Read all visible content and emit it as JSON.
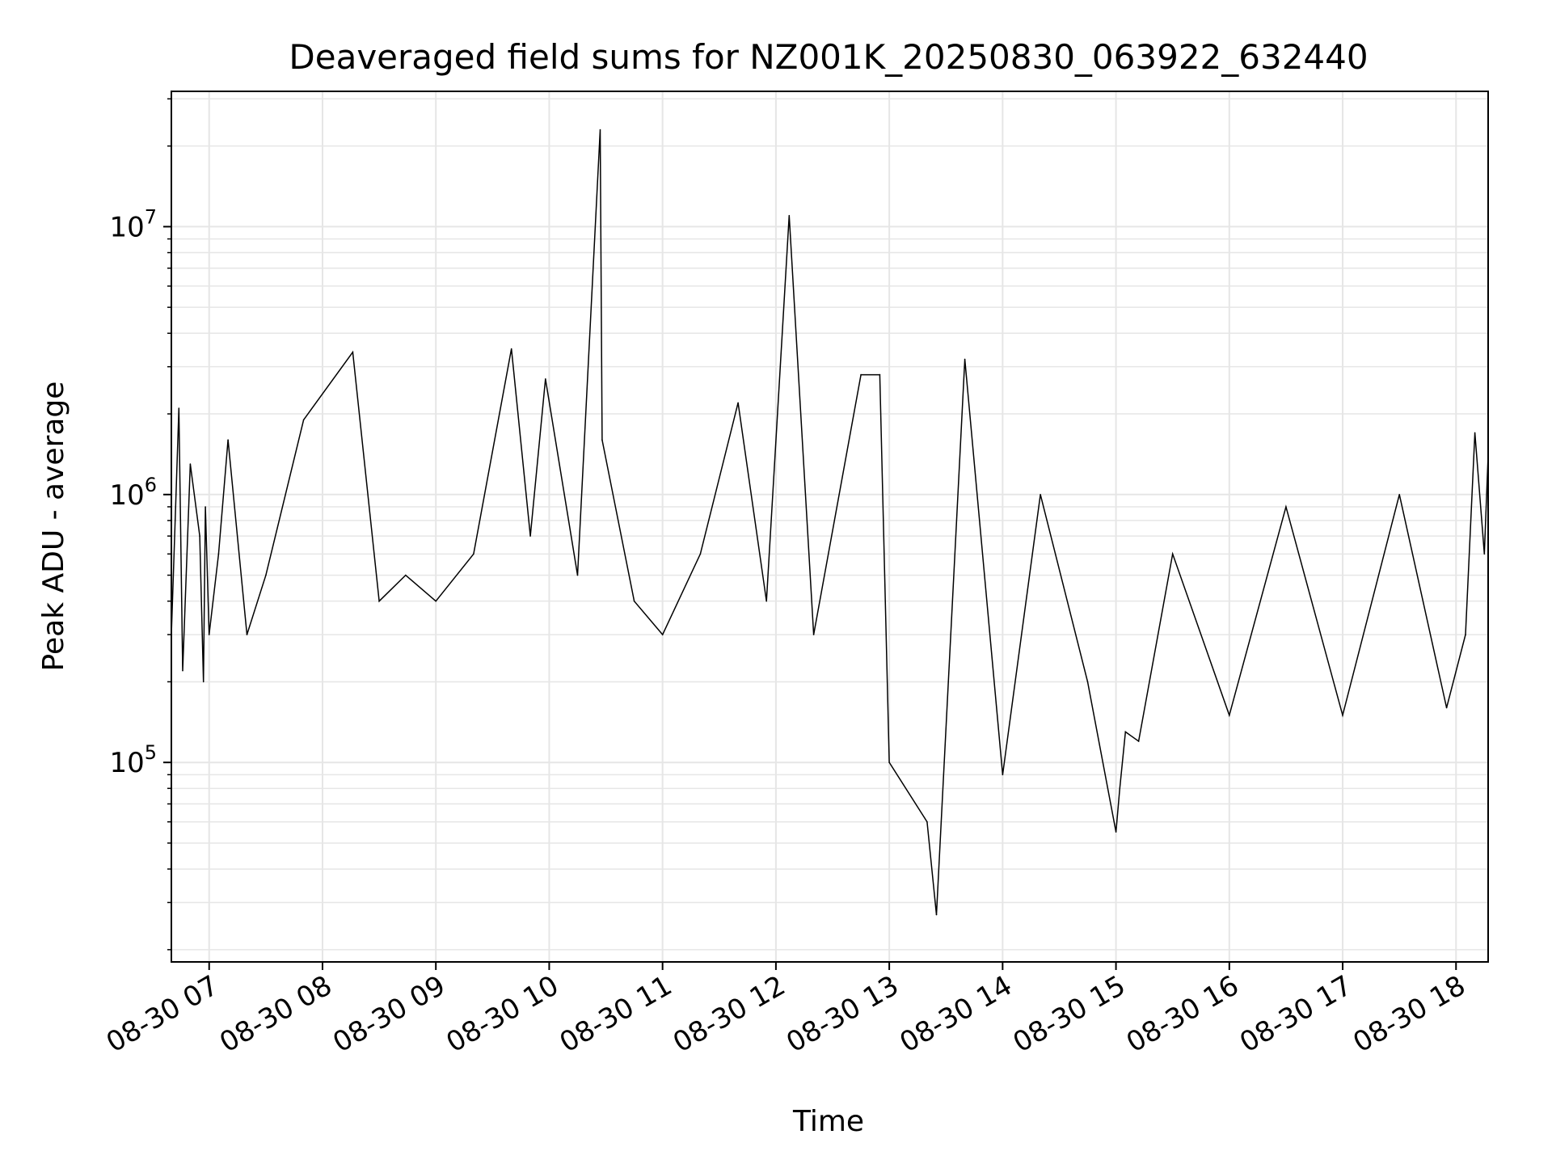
{
  "chart_data": {
    "type": "line",
    "title": "Deaveraged field sums for NZ001K_20250830_063922_632440",
    "xlabel": "Time",
    "ylabel": "Peak ADU - average",
    "y_scale": "log",
    "ylim": [
      18000,
      32000000
    ],
    "xlim": [
      "2025-08-30 06:40",
      "2025-08-30 18:17"
    ],
    "grid": true,
    "line_color": "#000000",
    "grid_color": "#e6e6e6",
    "x_ticks": [
      {
        "value": "2025-08-30 07:00",
        "label": "08-30 07"
      },
      {
        "value": "2025-08-30 08:00",
        "label": "08-30 08"
      },
      {
        "value": "2025-08-30 09:00",
        "label": "08-30 09"
      },
      {
        "value": "2025-08-30 10:00",
        "label": "08-30 10"
      },
      {
        "value": "2025-08-30 11:00",
        "label": "08-30 11"
      },
      {
        "value": "2025-08-30 12:00",
        "label": "08-30 12"
      },
      {
        "value": "2025-08-30 13:00",
        "label": "08-30 13"
      },
      {
        "value": "2025-08-30 14:00",
        "label": "08-30 14"
      },
      {
        "value": "2025-08-30 15:00",
        "label": "08-30 15"
      },
      {
        "value": "2025-08-30 16:00",
        "label": "08-30 16"
      },
      {
        "value": "2025-08-30 17:00",
        "label": "08-30 17"
      },
      {
        "value": "2025-08-30 18:00",
        "label": "08-30 18"
      }
    ],
    "y_ticks": [
      {
        "value": 100000,
        "base": "10",
        "exp": "5"
      },
      {
        "value": 1000000,
        "base": "10",
        "exp": "6"
      },
      {
        "value": 10000000,
        "base": "10",
        "exp": "7"
      }
    ],
    "series": [
      {
        "x": [
          "2025-08-30 06:40",
          "2025-08-30 06:42",
          "2025-08-30 06:44",
          "2025-08-30 06:46",
          "2025-08-30 06:50",
          "2025-08-30 06:55",
          "2025-08-30 06:57",
          "2025-08-30 06:58",
          "2025-08-30 07:00",
          "2025-08-30 07:05",
          "2025-08-30 07:10",
          "2025-08-30 07:20",
          "2025-08-30 07:30",
          "2025-08-30 07:50",
          "2025-08-30 08:16",
          "2025-08-30 08:30",
          "2025-08-30 08:44",
          "2025-08-30 09:00",
          "2025-08-30 09:20",
          "2025-08-30 09:40",
          "2025-08-30 09:50",
          "2025-08-30 09:58",
          "2025-08-30 10:15",
          "2025-08-30 10:27",
          "2025-08-30 10:28",
          "2025-08-30 10:45",
          "2025-08-30 11:00",
          "2025-08-30 11:20",
          "2025-08-30 11:40",
          "2025-08-30 11:55",
          "2025-08-30 12:07",
          "2025-08-30 12:20",
          "2025-08-30 12:45",
          "2025-08-30 12:55",
          "2025-08-30 13:00",
          "2025-08-30 13:20",
          "2025-08-30 13:25",
          "2025-08-30 13:40",
          "2025-08-30 14:00",
          "2025-08-30 14:20",
          "2025-08-30 14:45",
          "2025-08-30 15:00",
          "2025-08-30 15:02",
          "2025-08-30 15:05",
          "2025-08-30 15:12",
          "2025-08-30 15:30",
          "2025-08-30 16:00",
          "2025-08-30 16:30",
          "2025-08-30 17:00",
          "2025-08-30 17:30",
          "2025-08-30 17:55",
          "2025-08-30 18:05",
          "2025-08-30 18:10",
          "2025-08-30 18:15",
          "2025-08-30 18:17"
        ],
        "values": [
          300000,
          800000,
          2100000,
          220000,
          1300000,
          700000,
          200000,
          900000,
          300000,
          600000,
          1600000,
          300000,
          500000,
          1900000,
          3400000,
          400000,
          500000,
          400000,
          600000,
          3500000,
          700000,
          2700000,
          500000,
          23000000,
          1600000,
          400000,
          300000,
          600000,
          2200000,
          400000,
          11000000,
          300000,
          2800000,
          2800000,
          100000,
          60000,
          27000,
          3200000,
          90000,
          1000000,
          200000,
          55000,
          80000,
          130000,
          120000,
          600000,
          150000,
          900000,
          150000,
          1000000,
          160000,
          300000,
          1700000,
          600000,
          1400000
        ]
      }
    ]
  }
}
